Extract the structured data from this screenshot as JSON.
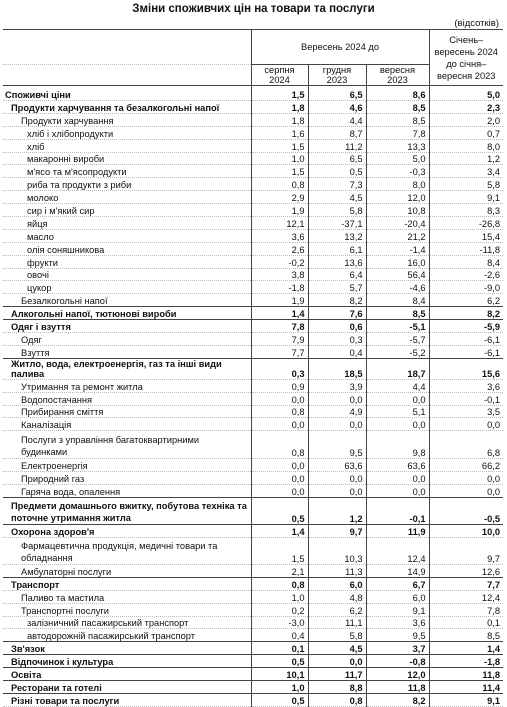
{
  "title": "Зміни споживчих цін на товари та послуги",
  "unit": "(відсотків)",
  "header": {
    "group_label": "Вересень 2024 до",
    "col1": "серпня 2024",
    "col2": "грудня 2023",
    "col3": "вересня 2023",
    "col4": "Січень–вересень 2024 до січня–вересня 2023"
  },
  "rows": [
    {
      "label": "Споживчі ціни",
      "v": [
        "1,5",
        "6,5",
        "8,6",
        "5,0"
      ]
    },
    {
      "label": "Продукти харчування та безалкогольні напої",
      "v": [
        "1,8",
        "4,6",
        "8,5",
        "2,3"
      ]
    },
    {
      "label": "Продукти харчування",
      "v": [
        "1,8",
        "4,4",
        "8,5",
        "2,0"
      ]
    },
    {
      "label": "хліб і хлібопродукти",
      "v": [
        "1,6",
        "8,7",
        "7,8",
        "0,7"
      ]
    },
    {
      "label": "хліб",
      "v": [
        "1,5",
        "11,2",
        "13,3",
        "8,0"
      ]
    },
    {
      "label": "макаронні вироби",
      "v": [
        "1,0",
        "6,5",
        "5,0",
        "1,2"
      ]
    },
    {
      "label": "м'ясо та м'ясопродукти",
      "v": [
        "1,5",
        "0,5",
        "-0,3",
        "3,4"
      ]
    },
    {
      "label": "риба та продукти з риби",
      "v": [
        "0,8",
        "7,3",
        "8,0",
        "5,8"
      ]
    },
    {
      "label": "молоко",
      "v": [
        "2,9",
        "4,5",
        "12,0",
        "9,1"
      ]
    },
    {
      "label": "сир і м'який сир",
      "v": [
        "1,9",
        "5,8",
        "10,8",
        "8,3"
      ]
    },
    {
      "label": "яйця",
      "v": [
        "12,1",
        "-37,1",
        "-20,4",
        "-26,8"
      ]
    },
    {
      "label": "масло",
      "v": [
        "3,6",
        "13,2",
        "21,2",
        "15,4"
      ]
    },
    {
      "label": "олія соняшникова",
      "v": [
        "2,6",
        "6,1",
        "-1,4",
        "-11,8"
      ]
    },
    {
      "label": "фрукти",
      "v": [
        "-0,2",
        "13,6",
        "16,0",
        "8,4"
      ]
    },
    {
      "label": "овочі",
      "v": [
        "3,8",
        "6,4",
        "56,4",
        "-2,6"
      ]
    },
    {
      "label": "цукор",
      "v": [
        "-1,8",
        "5,7",
        "-4,6",
        "-9,0"
      ]
    },
    {
      "label": "Безалкогольні напої",
      "v": [
        "1,9",
        "8,2",
        "8,4",
        "6,2"
      ]
    },
    {
      "label": "Алкогольні напої, тютюнові вироби",
      "v": [
        "1,4",
        "7,6",
        "8,5",
        "8,2"
      ]
    },
    {
      "label": "Одяг і взуття",
      "v": [
        "7,8",
        "0,6",
        "-5,1",
        "-5,9"
      ]
    },
    {
      "label": "Одяг",
      "v": [
        "7,9",
        "0,3",
        "-5,7",
        "-6,1"
      ]
    },
    {
      "label": "Взуття",
      "v": [
        "7,7",
        "0,4",
        "-5,2",
        "-6,1"
      ]
    },
    {
      "label": "Житло, вода, електроенергія, газ та інші види палива",
      "v": [
        "0,3",
        "18,5",
        "18,7",
        "15,6"
      ]
    },
    {
      "label": "Утримання та ремонт житла",
      "v": [
        "0,9",
        "3,9",
        "4,4",
        "3,6"
      ]
    },
    {
      "label": "Водопостачання",
      "v": [
        "0,0",
        "0,0",
        "0,0",
        "-0,1"
      ]
    },
    {
      "label": "Прибирання сміття",
      "v": [
        "0,8",
        "4,9",
        "5,1",
        "3,5"
      ]
    },
    {
      "label": "Каналізація",
      "v": [
        "0,0",
        "0,0",
        "0,0",
        "0,0"
      ]
    },
    {
      "label": "Послуги з управління багатоквартирними будинками",
      "v": [
        "0,8",
        "9,5",
        "9,8",
        "6,8"
      ]
    },
    {
      "label": "Електроенергія",
      "v": [
        "0,0",
        "63,6",
        "63,6",
        "66,2"
      ]
    },
    {
      "label": "Природний газ",
      "v": [
        "0,0",
        "0,0",
        "0,0",
        "0,0"
      ]
    },
    {
      "label": "Гаряча вода, опалення",
      "v": [
        "0,0",
        "0,0",
        "0,0",
        "0,0"
      ]
    },
    {
      "label": "Предмети домашнього вжитку, побутова техніка та поточне утримання житла",
      "v": [
        "0,5",
        "1,2",
        "-0,1",
        "-0,5"
      ]
    },
    {
      "label": "Охорона здоров'я",
      "v": [
        "1,4",
        "9,7",
        "11,9",
        "10,0"
      ]
    },
    {
      "label": "Фармацевтична продукція, медичні товари та обладнання",
      "v": [
        "1,5",
        "10,3",
        "12,4",
        "9,7"
      ]
    },
    {
      "label": "Амбулаторні послуги",
      "v": [
        "2,1",
        "11,3",
        "14,9",
        "12,6"
      ]
    },
    {
      "label": "Транспорт",
      "v": [
        "0,8",
        "6,0",
        "6,7",
        "7,7"
      ]
    },
    {
      "label": "Паливо та мастила",
      "v": [
        "1,0",
        "4,8",
        "6,0",
        "12,4"
      ]
    },
    {
      "label": "Транспортні послуги",
      "v": [
        "0,2",
        "6,2",
        "9,1",
        "7,8"
      ]
    },
    {
      "label": "залізничний пасажирський транспорт",
      "v": [
        "-3,0",
        "11,1",
        "3,6",
        "0,1"
      ]
    },
    {
      "label": "автодорожній пасажирський транспорт",
      "v": [
        "0,4",
        "5,8",
        "9,5",
        "8,5"
      ]
    },
    {
      "label": "Зв'язок",
      "v": [
        "0,1",
        "4,5",
        "3,7",
        "1,4"
      ]
    },
    {
      "label": "Відпочинок і культура",
      "v": [
        "0,5",
        "0,0",
        "-0,8",
        "-1,8"
      ]
    },
    {
      "label": "Освіта",
      "v": [
        "10,1",
        "11,7",
        "12,0",
        "11,8"
      ]
    },
    {
      "label": "Ресторани та готелі",
      "v": [
        "1,0",
        "8,8",
        "11,8",
        "11,4"
      ]
    },
    {
      "label": "Різні товари та послуги",
      "v": [
        "0,5",
        "0,8",
        "8,2",
        "9,1"
      ]
    }
  ]
}
